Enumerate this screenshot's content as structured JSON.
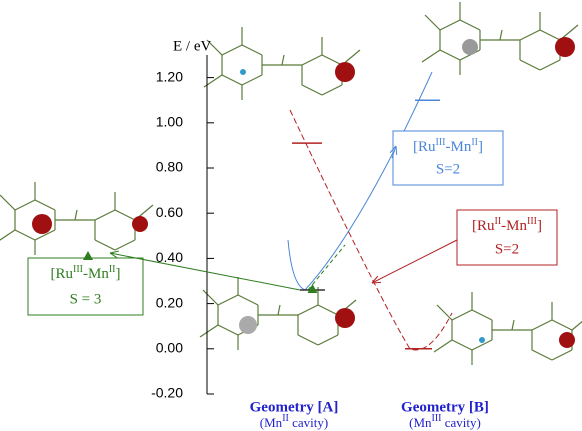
{
  "chart_data": {
    "type": "energy-levels",
    "y_label": "E / eV",
    "ylim": [
      -0.2,
      1.3
    ],
    "yticks": [
      {
        "value": -0.2,
        "label": "-0.20"
      },
      {
        "value": 0,
        "label": "0.00"
      },
      {
        "value": 0.2,
        "label": "0.20"
      },
      {
        "value": 0.4,
        "label": "0.40"
      },
      {
        "value": 0.6,
        "label": "0.60"
      },
      {
        "value": 0.8,
        "label": "0.80"
      },
      {
        "value": 1.0,
        "label": "1.00"
      },
      {
        "value": 1.2,
        "label": "1.20"
      }
    ],
    "categories": [
      {
        "name": "Geometry [A]",
        "note_parts": [
          "(Mn",
          "II",
          " cavity)"
        ]
      },
      {
        "name": "Geometry [B]",
        "note_parts": [
          "(Mn",
          "III",
          " cavity)"
        ]
      }
    ],
    "series": [
      {
        "label_parts": [
          "[Ru",
          "III",
          "-Mn",
          "II",
          "]"
        ],
        "spin": "S=2",
        "color": "#4a86d8",
        "values": [
          null,
          1.1
        ]
      },
      {
        "label_parts": [
          "[Ru",
          "II",
          "-Mn",
          "III",
          "]"
        ],
        "spin": "S=2",
        "color": "#b22222",
        "values": [
          0.91,
          0.0
        ]
      },
      {
        "label_parts": [
          "[Ru",
          "III",
          "-Mn",
          "II",
          "]"
        ],
        "spin": "S = 3",
        "color": "#2e7d1e",
        "values": [
          0.26,
          null
        ]
      }
    ]
  }
}
